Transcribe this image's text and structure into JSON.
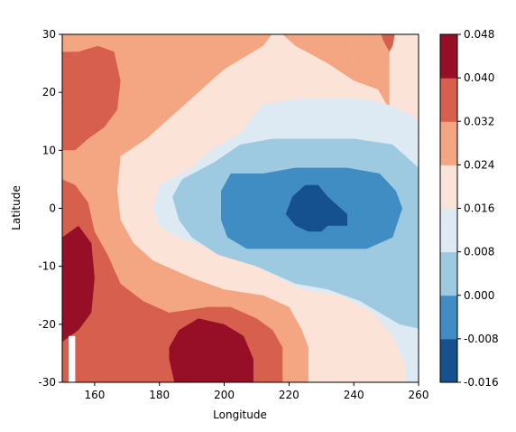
{
  "chart_data": {
    "type": "heatmap",
    "title": "",
    "xlabel": "Longitude",
    "ylabel": "Latitude",
    "xlim": [
      150,
      260
    ],
    "ylim": [
      -30,
      30
    ],
    "x_ticks": [
      160,
      180,
      200,
      220,
      240,
      260
    ],
    "y_ticks": [
      -30,
      -20,
      -10,
      0,
      10,
      20,
      30
    ],
    "colorbar": {
      "levels": [
        -0.016,
        -0.008,
        0.0,
        0.008,
        0.016,
        0.024,
        0.032,
        0.04,
        0.048
      ],
      "tick_labels": [
        "-0.016",
        "-0.008",
        "0.000",
        "0.008",
        "0.016",
        "0.024",
        "0.032",
        "0.040",
        "0.048"
      ],
      "colors": [
        "#15508f",
        "#3f8dc2",
        "#9ecae1",
        "#ddeaf3",
        "#fbe3d7",
        "#f4a582",
        "#d6604d",
        "#960f27"
      ]
    },
    "regions": [
      {
        "band": "0.040 to 0.048",
        "color": "#960f27",
        "location": "west edge, lat -5 to -23, lon 150-160"
      },
      {
        "band": "0.040 to 0.048",
        "color": "#960f27",
        "location": "south, lat -20 to -30, lon 183-208"
      },
      {
        "band": "0.032 to 0.040",
        "color": "#d6604d",
        "location": "north-west, lat 10 to 27, lon 150-170"
      },
      {
        "band": "-0.016 to -0.008",
        "color": "#15508f",
        "location": "core, lat -4 to 4, lon 218-238"
      },
      {
        "band": "-0.008 to 0.000",
        "color": "#3f8dc2",
        "location": "lat -8 to 6, lon 193-250"
      }
    ]
  }
}
